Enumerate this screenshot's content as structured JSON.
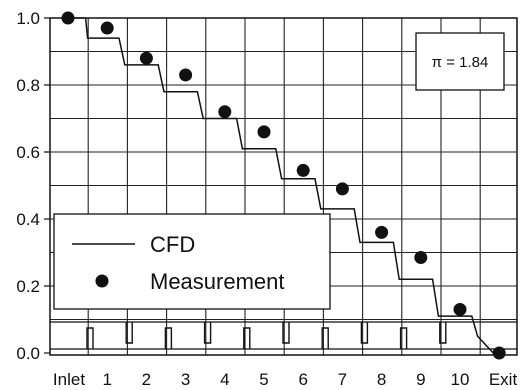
{
  "chart_data": {
    "type": "line",
    "x_categories": [
      "Inlet",
      "1",
      "2",
      "3",
      "4",
      "5",
      "6",
      "7",
      "8",
      "9",
      "10",
      "Exit"
    ],
    "y_ticks": [
      "0.0",
      "0.2",
      "0.4",
      "0.6",
      "0.8",
      "1.0"
    ],
    "ylim": [
      0,
      1.0
    ],
    "grid": true,
    "annotation": "π = 1.84",
    "legend": {
      "placement": "bottom-left",
      "entries": [
        {
          "label": "CFD",
          "marker": "line"
        },
        {
          "label": "Measurement",
          "marker": "filled-circle"
        }
      ]
    },
    "series": [
      {
        "name": "CFD",
        "style": "step",
        "points": [
          [
            0.0,
            1.0
          ],
          [
            0.45,
            1.0
          ],
          [
            0.5,
            0.94
          ],
          [
            1.3,
            0.94
          ],
          [
            1.45,
            0.86
          ],
          [
            2.3,
            0.86
          ],
          [
            2.45,
            0.78
          ],
          [
            3.3,
            0.78
          ],
          [
            3.45,
            0.7
          ],
          [
            4.3,
            0.7
          ],
          [
            4.45,
            0.61
          ],
          [
            5.3,
            0.61
          ],
          [
            5.45,
            0.52
          ],
          [
            6.3,
            0.52
          ],
          [
            6.45,
            0.43
          ],
          [
            7.3,
            0.43
          ],
          [
            7.45,
            0.33
          ],
          [
            8.3,
            0.33
          ],
          [
            8.45,
            0.22
          ],
          [
            9.3,
            0.22
          ],
          [
            9.45,
            0.11
          ],
          [
            10.3,
            0.11
          ],
          [
            10.45,
            0.05
          ],
          [
            10.85,
            0.0
          ],
          [
            11.0,
            0.0
          ]
        ]
      },
      {
        "name": "Measurement",
        "style": "markers",
        "points": [
          [
            0,
            1.0
          ],
          [
            1,
            0.97
          ],
          [
            2,
            0.88
          ],
          [
            3,
            0.83
          ],
          [
            4,
            0.72
          ],
          [
            5,
            0.66
          ],
          [
            6,
            0.545
          ],
          [
            7,
            0.49
          ],
          [
            8,
            0.36
          ],
          [
            9,
            0.285
          ],
          [
            10,
            0.13
          ],
          [
            11,
            0.0
          ]
        ]
      }
    ]
  }
}
